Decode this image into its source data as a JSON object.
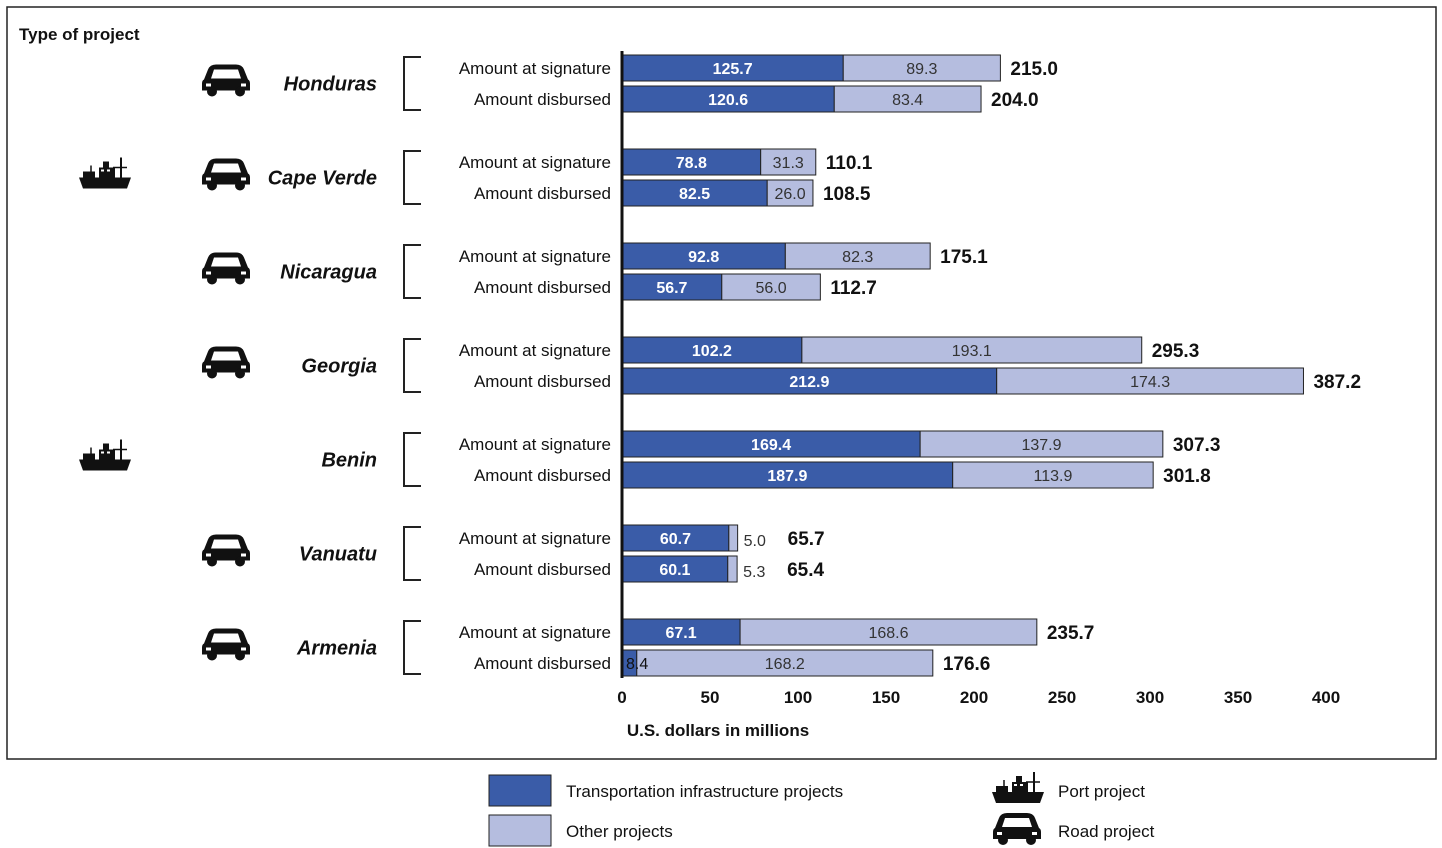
{
  "chart_data": {
    "type": "bar",
    "orientation": "horizontal",
    "stacked": true,
    "corner_label": "Type of project",
    "xlabel": "U.S. dollars in millions",
    "xlim": [
      0,
      400
    ],
    "x_ticks": [
      "0",
      "50",
      "100",
      "150",
      "200",
      "250",
      "300",
      "350",
      "400"
    ],
    "bar_labels": [
      "Amount at signature",
      "Amount disbursed"
    ],
    "countries": [
      {
        "name": "Honduras",
        "types": [
          "road"
        ],
        "bars": [
          {
            "label": "Amount at signature",
            "transport": 125.7,
            "other": 89.3,
            "total": 215.0,
            "transport_text": "125.7",
            "other_text": "89.3",
            "total_text": "215.0"
          },
          {
            "label": "Amount disbursed",
            "transport": 120.6,
            "other": 83.4,
            "total": 204.0,
            "transport_text": "120.6",
            "other_text": "83.4",
            "total_text": "204.0"
          }
        ]
      },
      {
        "name": "Cape Verde",
        "types": [
          "port",
          "road"
        ],
        "bars": [
          {
            "label": "Amount at signature",
            "transport": 78.8,
            "other": 31.3,
            "total": 110.1,
            "transport_text": "78.8",
            "other_text": "31.3",
            "total_text": "110.1"
          },
          {
            "label": "Amount disbursed",
            "transport": 82.5,
            "other": 26.0,
            "total": 108.5,
            "transport_text": "82.5",
            "other_text": "26.0",
            "total_text": "108.5"
          }
        ]
      },
      {
        "name": "Nicaragua",
        "types": [
          "road"
        ],
        "bars": [
          {
            "label": "Amount at signature",
            "transport": 92.8,
            "other": 82.3,
            "total": 175.1,
            "transport_text": "92.8",
            "other_text": "82.3",
            "total_text": "175.1"
          },
          {
            "label": "Amount disbursed",
            "transport": 56.7,
            "other": 56.0,
            "total": 112.7,
            "transport_text": "56.7",
            "other_text": "56.0",
            "total_text": "112.7"
          }
        ]
      },
      {
        "name": "Georgia",
        "types": [
          "road"
        ],
        "bars": [
          {
            "label": "Amount at signature",
            "transport": 102.2,
            "other": 193.1,
            "total": 295.3,
            "transport_text": "102.2",
            "other_text": "193.1",
            "total_text": "295.3"
          },
          {
            "label": "Amount disbursed",
            "transport": 212.9,
            "other": 174.3,
            "total": 387.2,
            "transport_text": "212.9",
            "other_text": "174.3",
            "total_text": "387.2"
          }
        ]
      },
      {
        "name": "Benin",
        "types": [
          "port"
        ],
        "bars": [
          {
            "label": "Amount at signature",
            "transport": 169.4,
            "other": 137.9,
            "total": 307.3,
            "transport_text": "169.4",
            "other_text": "137.9",
            "total_text": "307.3"
          },
          {
            "label": "Amount disbursed",
            "transport": 187.9,
            "other": 113.9,
            "total": 301.8,
            "transport_text": "187.9",
            "other_text": "113.9",
            "total_text": "301.8"
          }
        ]
      },
      {
        "name": "Vanuatu",
        "types": [
          "road"
        ],
        "bars": [
          {
            "label": "Amount at signature",
            "transport": 60.7,
            "other": 5.0,
            "total": 65.7,
            "transport_text": "60.7",
            "other_text": "5.0",
            "total_text": "65.7"
          },
          {
            "label": "Amount disbursed",
            "transport": 60.1,
            "other": 5.3,
            "total": 65.4,
            "transport_text": "60.1",
            "other_text": "5.3",
            "total_text": "65.4"
          }
        ]
      },
      {
        "name": "Armenia",
        "types": [
          "road"
        ],
        "bars": [
          {
            "label": "Amount at signature",
            "transport": 67.1,
            "other": 168.6,
            "total": 235.7,
            "transport_text": "67.1",
            "other_text": "168.6",
            "total_text": "235.7"
          },
          {
            "label": "Amount disbursed",
            "transport": 8.4,
            "other": 168.2,
            "total": 176.6,
            "transport_text": "8.4",
            "other_text": "168.2",
            "total_text": "176.6"
          }
        ]
      }
    ],
    "legend": {
      "placement": "bottom",
      "series": [
        {
          "key": "transport",
          "label": "Transportation infrastructure projects",
          "color": "#3a5ca8"
        },
        {
          "key": "other",
          "label": "Other projects",
          "color": "#b5bddf"
        }
      ],
      "icons": [
        {
          "key": "port",
          "label": "Port project",
          "icon": "ship-icon"
        },
        {
          "key": "road",
          "label": "Road project",
          "icon": "car-icon"
        }
      ]
    },
    "colors": {
      "transport": "#3a5ca8",
      "other": "#b5bddf",
      "border": "#222222"
    }
  }
}
